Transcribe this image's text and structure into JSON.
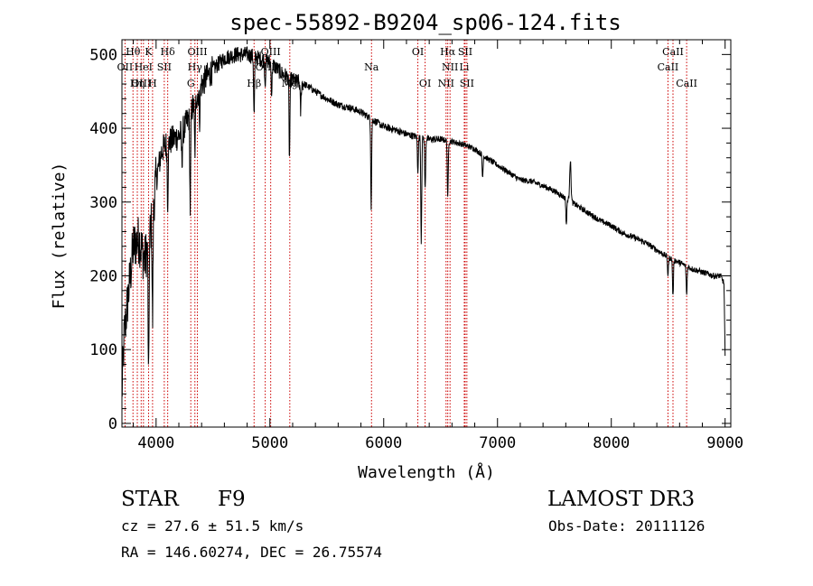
{
  "chart_data": {
    "type": "line",
    "title": "spec-55892-B9204_sp06-124.fits",
    "xlabel": "Wavelength (Å)",
    "ylabel": "Flux (relative)",
    "xlim": [
      3700,
      9050
    ],
    "ylim": [
      -5,
      520
    ],
    "xticks": [
      4000,
      5000,
      6000,
      7000,
      8000,
      9000
    ],
    "yticks": [
      0,
      100,
      200,
      300,
      400,
      500
    ],
    "continuum": [
      [
        3700,
        40
      ],
      [
        3720,
        120
      ],
      [
        3760,
        180
      ],
      [
        3800,
        240
      ],
      [
        3850,
        250
      ],
      [
        3900,
        220
      ],
      [
        3950,
        260
      ],
      [
        4000,
        330
      ],
      [
        4050,
        370
      ],
      [
        4100,
        380
      ],
      [
        4150,
        385
      ],
      [
        4200,
        390
      ],
      [
        4250,
        400
      ],
      [
        4300,
        420
      ],
      [
        4350,
        440
      ],
      [
        4400,
        460
      ],
      [
        4450,
        470
      ],
      [
        4500,
        480
      ],
      [
        4600,
        495
      ],
      [
        4700,
        500
      ],
      [
        4800,
        500
      ],
      [
        4900,
        495
      ],
      [
        5000,
        490
      ],
      [
        5100,
        475
      ],
      [
        5200,
        465
      ],
      [
        5300,
        460
      ],
      [
        5400,
        450
      ],
      [
        5500,
        440
      ],
      [
        5600,
        432
      ],
      [
        5700,
        428
      ],
      [
        5800,
        422
      ],
      [
        5900,
        412
      ],
      [
        6000,
        402
      ],
      [
        6100,
        398
      ],
      [
        6200,
        392
      ],
      [
        6300,
        388
      ],
      [
        6400,
        385
      ],
      [
        6500,
        385
      ],
      [
        6600,
        382
      ],
      [
        6700,
        378
      ],
      [
        6800,
        372
      ],
      [
        6900,
        360
      ],
      [
        7000,
        350
      ],
      [
        7100,
        340
      ],
      [
        7200,
        330
      ],
      [
        7300,
        328
      ],
      [
        7400,
        322
      ],
      [
        7500,
        315
      ],
      [
        7600,
        305
      ],
      [
        7700,
        295
      ],
      [
        7800,
        285
      ],
      [
        7900,
        275
      ],
      [
        8000,
        268
      ],
      [
        8100,
        258
      ],
      [
        8200,
        252
      ],
      [
        8300,
        245
      ],
      [
        8400,
        235
      ],
      [
        8500,
        225
      ],
      [
        8600,
        218
      ],
      [
        8700,
        210
      ],
      [
        8800,
        205
      ],
      [
        8900,
        200
      ],
      [
        8960,
        200
      ],
      [
        8990,
        190
      ],
      [
        9000,
        90
      ]
    ],
    "absorption": [
      [
        3934,
        200
      ],
      [
        3969,
        150
      ],
      [
        4102,
        80
      ],
      [
        4227,
        40
      ],
      [
        4300,
        130
      ],
      [
        4341,
        70
      ],
      [
        4383,
        40
      ],
      [
        4861,
        80
      ],
      [
        4958,
        30
      ],
      [
        5015,
        40
      ],
      [
        5172,
        110
      ],
      [
        5270,
        40
      ],
      [
        5890,
        120
      ],
      [
        6300,
        45
      ],
      [
        6330,
        140
      ],
      [
        6364,
        70
      ],
      [
        6563,
        80
      ],
      [
        6869,
        30
      ],
      [
        7605,
        35
      ],
      [
        8498,
        25
      ],
      [
        8542,
        50
      ],
      [
        8662,
        40
      ]
    ],
    "emission": [
      [
        7640,
        55
      ]
    ],
    "lines": [
      {
        "label": "Hθ",
        "x": 3797,
        "row": 1
      },
      {
        "label": "OII",
        "x": 3727,
        "row": 2
      },
      {
        "label": "OIII",
        "x": 3869,
        "row": 3
      },
      {
        "label": "K",
        "x": 3934,
        "row": 1
      },
      {
        "label": "HeI",
        "x": 3889,
        "row": 2
      },
      {
        "label": "Hη",
        "x": 3835,
        "row": 3
      },
      {
        "label": "SII",
        "x": 4072,
        "row": 2
      },
      {
        "label": "Hδ",
        "x": 4102,
        "row": 1
      },
      {
        "label": "H",
        "x": 3969,
        "row": 3
      },
      {
        "label": "OIII",
        "x": 4363,
        "row": 1
      },
      {
        "label": "Hγ",
        "x": 4341,
        "row": 2
      },
      {
        "label": "G",
        "x": 4305,
        "row": 3
      },
      {
        "label": "OIII",
        "x": 5007,
        "row": 1
      },
      {
        "label": "OIII",
        "x": 4959,
        "row": 2
      },
      {
        "label": "Hβ",
        "x": 4861,
        "row": 3
      },
      {
        "label": "Mg",
        "x": 5175,
        "row": 3
      },
      {
        "label": "Na",
        "x": 5893,
        "row": 2
      },
      {
        "label": "OI",
        "x": 6300,
        "row": 1
      },
      {
        "label": "OI",
        "x": 6364,
        "row": 3
      },
      {
        "label": "Hα",
        "x": 6563,
        "row": 1
      },
      {
        "label": "NII",
        "x": 6583,
        "row": 2
      },
      {
        "label": "NII",
        "x": 6548,
        "row": 3
      },
      {
        "label": "SII",
        "x": 6716,
        "row": 1
      },
      {
        "label": "Li",
        "x": 6708,
        "row": 2
      },
      {
        "label": "SII",
        "x": 6731,
        "row": 3
      },
      {
        "label": "CaII",
        "x": 8542,
        "row": 1
      },
      {
        "label": "CaII",
        "x": 8498,
        "row": 2
      },
      {
        "label": "CaII",
        "x": 8662,
        "row": 3
      }
    ],
    "line_markers": [
      3727,
      3797,
      3835,
      3869,
      3889,
      3934,
      3969,
      4072,
      4102,
      4305,
      4341,
      4363,
      4861,
      4959,
      5007,
      5175,
      5893,
      6300,
      6364,
      6548,
      6563,
      6583,
      6708,
      6716,
      6731,
      8498,
      8542,
      8662
    ]
  },
  "info": {
    "object_class": "STAR",
    "subclass": "F9",
    "survey": "LAMOST DR3",
    "cz": "cz = 27.6 ± 51.5 km/s",
    "obs_date": "Obs-Date: 20111126",
    "coords": "RA = 146.60274, DEC =  26.75574"
  },
  "colors": {
    "spectrum": "#000000",
    "line_marker": "#cc0000",
    "axis": "#000000"
  }
}
